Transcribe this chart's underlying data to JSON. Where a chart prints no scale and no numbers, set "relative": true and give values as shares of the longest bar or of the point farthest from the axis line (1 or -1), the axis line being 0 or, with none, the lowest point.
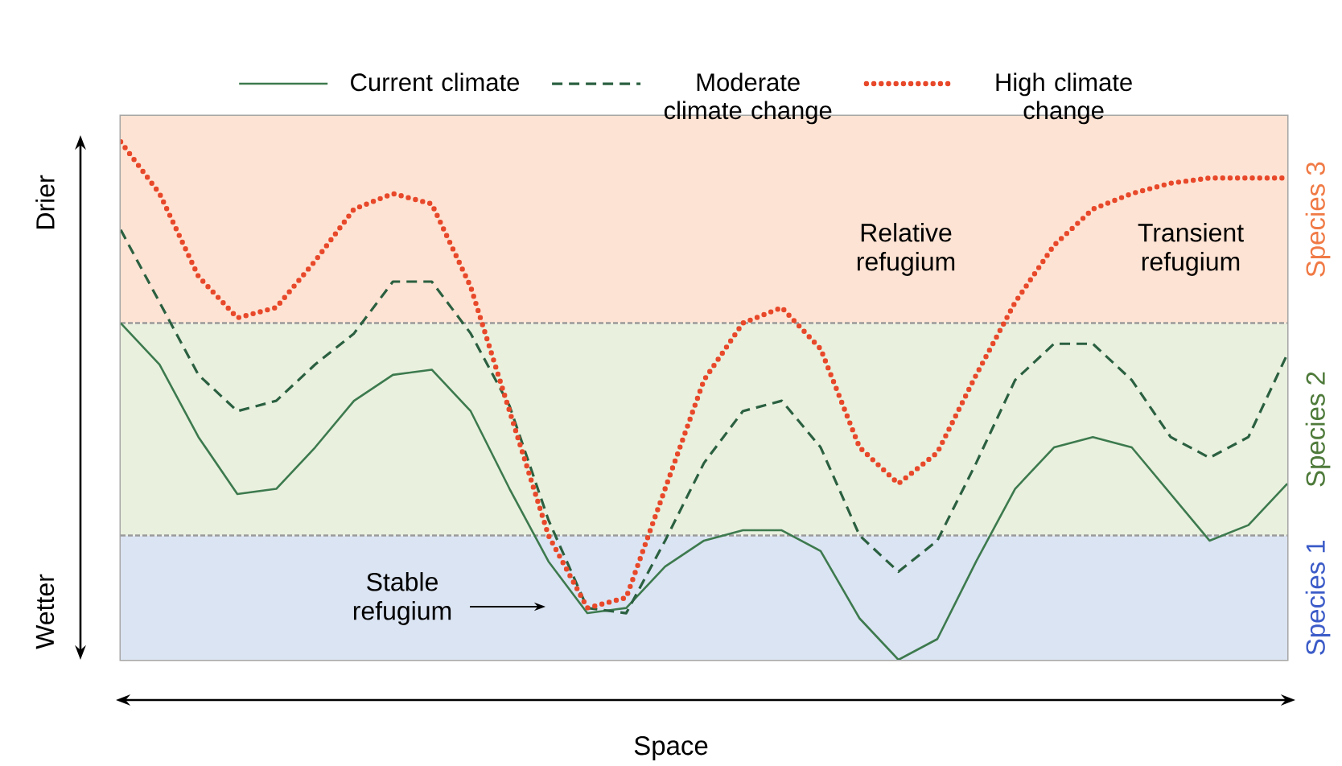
{
  "chart_data": {
    "type": "line",
    "relative": true,
    "marker": "none",
    "legend": "top",
    "xlabel": "Space",
    "categories": [
      null,
      null,
      null,
      null,
      null,
      null,
      null,
      null,
      null,
      null,
      null,
      null,
      null,
      null,
      null,
      null,
      null,
      null,
      null,
      null,
      null,
      null,
      null,
      null,
      null,
      null,
      null,
      null,
      null,
      null,
      null
    ],
    "series": [
      {
        "name": "Current climate",
        "color": "#3d7a4e",
        "line_style": "solid",
        "values": [
          0.65,
          0.57,
          0.43,
          0.32,
          0.33,
          0.41,
          0.5,
          0.55,
          0.56,
          0.48,
          0.33,
          0.19,
          0.09,
          0.1,
          0.18,
          0.23,
          0.25,
          0.25,
          0.21,
          0.08,
          0.0,
          0.04,
          0.19,
          0.33,
          0.41,
          0.43,
          0.41,
          0.32,
          0.23,
          0.26,
          0.34
        ]
      },
      {
        "name": "Moderate climate change",
        "color": "#2b6040",
        "line_style": "dashed",
        "values": [
          0.83,
          0.69,
          0.55,
          0.48,
          0.5,
          0.57,
          0.63,
          0.73,
          0.73,
          0.63,
          0.49,
          0.27,
          0.1,
          0.09,
          0.23,
          0.38,
          0.48,
          0.5,
          0.41,
          0.24,
          0.17,
          0.23,
          0.38,
          0.54,
          0.61,
          0.61,
          0.54,
          0.43,
          0.39,
          0.43,
          0.59
        ]
      },
      {
        "name": "High climate change",
        "color": "#e8482a",
        "line_style": "dotted",
        "values": [
          1.0,
          0.9,
          0.74,
          0.66,
          0.68,
          0.77,
          0.87,
          0.9,
          0.88,
          0.72,
          0.48,
          0.24,
          0.1,
          0.12,
          0.33,
          0.54,
          0.65,
          0.68,
          0.6,
          0.41,
          0.34,
          0.4,
          0.55,
          0.69,
          0.8,
          0.87,
          0.9,
          0.92,
          0.93,
          0.93,
          0.93
        ]
      }
    ],
    "bands": [
      {
        "axis": "y",
        "from": 0,
        "to": 0.24,
        "label": "Species 1",
        "color": "#dbe4f2"
      },
      {
        "axis": "y",
        "from": 0.24,
        "to": 0.65,
        "label": "Species 2",
        "color": "#e9f0de"
      },
      {
        "axis": "y",
        "from": 0.65,
        "to": 1.05,
        "label": "Species 3",
        "color": "#fde3d3"
      }
    ],
    "ref_lines": [
      {
        "axis": "y",
        "value": 0.24,
        "color": "#9a9a9a",
        "line_style": "dashed"
      },
      {
        "axis": "y",
        "value": 0.65,
        "color": "#9a9a9a",
        "line_style": "dashed"
      }
    ],
    "annotations": [
      "Drier",
      "Wetter",
      "Relative refugium",
      "Transient refugium",
      "Stable refugium"
    ]
  }
}
